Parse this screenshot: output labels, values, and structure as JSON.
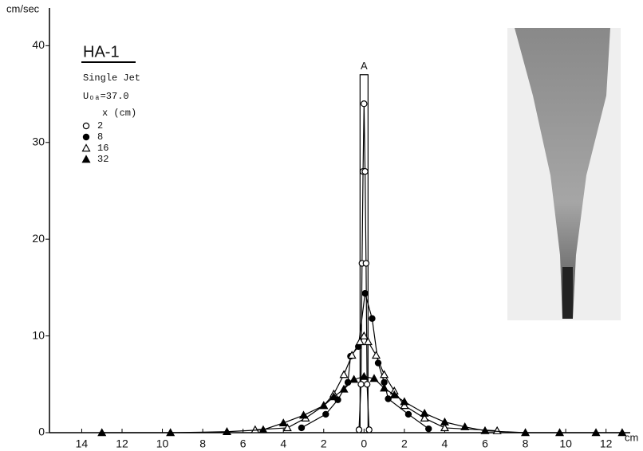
{
  "chart_data": {
    "type": "line",
    "title": "HA-1",
    "subtitle": "Single Jet",
    "condition": "Uₒₐ=37.0",
    "legend_title": "x (cm)",
    "y_label": "cm/sec",
    "x_label": "cm",
    "xlim": [
      -15.6,
      13.2
    ],
    "ylim": [
      0,
      43.9
    ],
    "xticks": [
      {
        "value": -14,
        "label": "14"
      },
      {
        "value": -12,
        "label": "12"
      },
      {
        "value": -10,
        "label": "10"
      },
      {
        "value": -8,
        "label": "8"
      },
      {
        "value": -6,
        "label": "6"
      },
      {
        "value": -4,
        "label": "4"
      },
      {
        "value": -2,
        "label": "2"
      },
      0,
      2,
      4,
      6,
      8,
      10,
      12
    ],
    "yticks": [
      0,
      10,
      20,
      30,
      40
    ],
    "annotation": {
      "text": "A",
      "x": 0,
      "y": 37
    },
    "series": [
      {
        "name": "2",
        "color": "#000000",
        "marker": "circle-open",
        "x": [
          -0.25,
          -0.15,
          -0.1,
          -0.05,
          0,
          0.05,
          0.1,
          0.15,
          0.25
        ],
        "values": [
          0.3,
          5,
          17.5,
          27,
          34,
          27,
          17.5,
          5,
          0.3
        ]
      },
      {
        "name": "8",
        "color": "#000000",
        "marker": "circle-filled",
        "x": [
          -3.1,
          -1.9,
          -1.3,
          -0.8,
          -0.67,
          -0.28,
          0.05,
          0.4,
          0.7,
          1.0,
          1.2,
          2.2,
          3.2
        ],
        "values": [
          0.5,
          1.9,
          3.4,
          5.2,
          7.9,
          8.9,
          14.4,
          11.8,
          7.2,
          5.2,
          3.5,
          1.9,
          0.4
        ]
      },
      {
        "name": "16",
        "color": "#000000",
        "marker": "triangle-open",
        "x": [
          -5.4,
          -3.8,
          -2.9,
          -2,
          -1.5,
          -1,
          -0.6,
          -0.2,
          0,
          0.2,
          0.6,
          1,
          1.5,
          2,
          3,
          4,
          6.6
        ],
        "values": [
          0.3,
          0.5,
          1.5,
          2.8,
          4,
          6,
          8,
          9.4,
          10,
          9.4,
          8,
          6,
          4.3,
          2.8,
          1.5,
          0.5,
          0.2
        ]
      },
      {
        "name": "32",
        "color": "#000000",
        "marker": "triangle-filled",
        "x": [
          -13,
          -9.6,
          -6.8,
          -5,
          -4,
          -3,
          -2,
          -1.5,
          -1,
          -0.5,
          0,
          0.5,
          1,
          1.5,
          2,
          3,
          4,
          5,
          6,
          8,
          9.7,
          11.5,
          12.8
        ],
        "values": [
          0,
          0,
          0.1,
          0.3,
          1,
          1.8,
          2.8,
          3.7,
          4.5,
          5.5,
          5.8,
          5.6,
          4.6,
          3.9,
          3.2,
          2,
          1.1,
          0.6,
          0.2,
          0,
          0,
          0,
          0
        ]
      }
    ]
  }
}
